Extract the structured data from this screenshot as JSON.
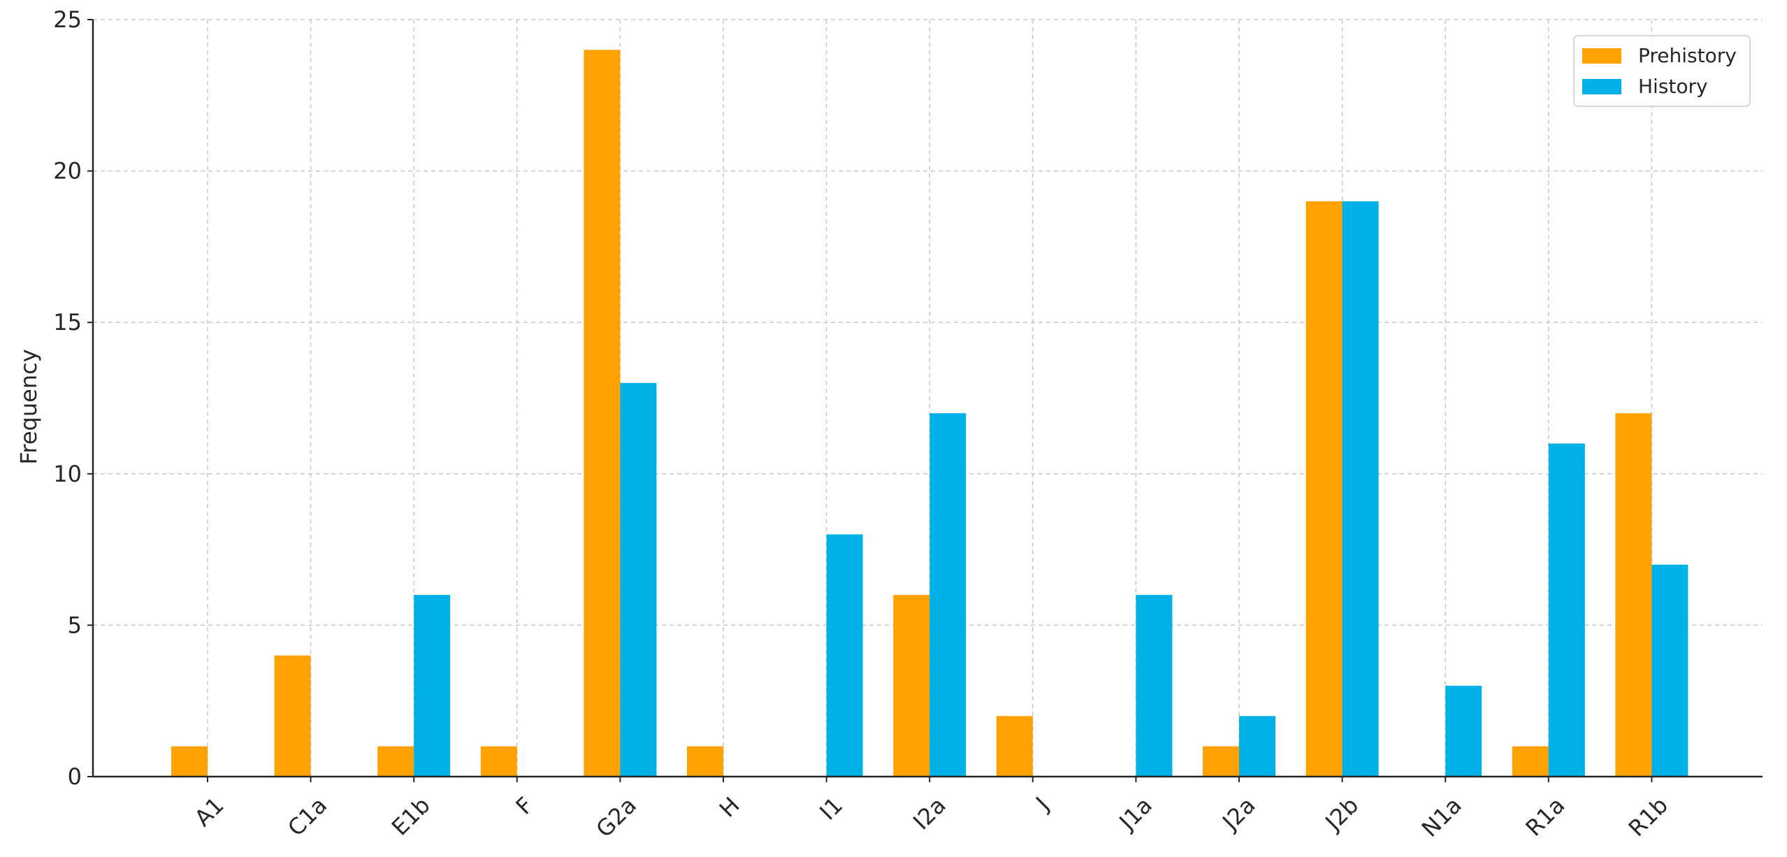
{
  "chart_data": {
    "type": "bar",
    "title": "",
    "xlabel": "",
    "ylabel": "Frequency",
    "ylim": [
      0,
      25
    ],
    "yticks": [
      0,
      5,
      10,
      15,
      20,
      25
    ],
    "grid": true,
    "legend_position": "top-right",
    "categories": [
      "A1",
      "C1a",
      "E1b",
      "F",
      "G2a",
      "H",
      "I1",
      "I2a",
      "J",
      "J1a",
      "J2a",
      "J2b",
      "N1a",
      "R1a",
      "R1b"
    ],
    "series": [
      {
        "name": "Prehistory",
        "color": "#FFA100",
        "values": [
          1,
          4,
          1,
          1,
          24,
          1,
          0,
          6,
          2,
          0,
          1,
          19,
          0,
          1,
          12
        ]
      },
      {
        "name": "History",
        "color": "#00B1E8",
        "values": [
          0,
          0,
          6,
          0,
          13,
          0,
          8,
          12,
          0,
          6,
          2,
          19,
          3,
          11,
          7
        ]
      }
    ]
  }
}
